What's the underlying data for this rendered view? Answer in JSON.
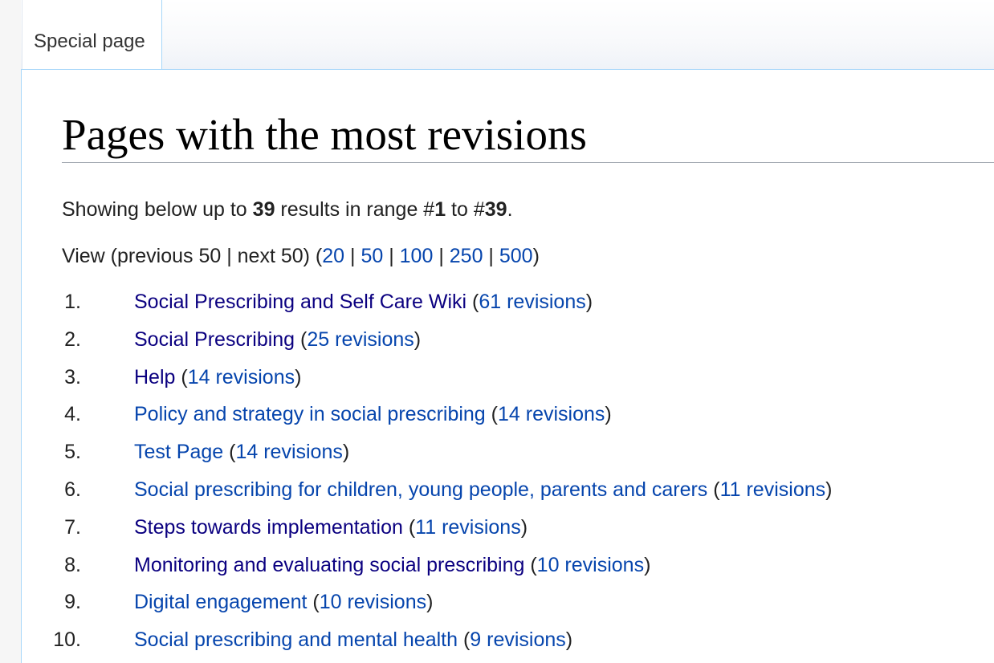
{
  "tab": {
    "label": "Special page"
  },
  "page": {
    "title": "Pages with the most revisions"
  },
  "summary": {
    "prefix": "Showing below up to ",
    "count": "39",
    "mid": " results in range #",
    "range_start": "1",
    "to": " to #",
    "range_end": "39",
    "end": "."
  },
  "view": {
    "prefix": "View (previous 50 | next 50) (",
    "sep": " | ",
    "suffix": ")",
    "options": [
      "20",
      "50",
      "100",
      "250",
      "500"
    ]
  },
  "results": [
    {
      "num": "1.",
      "title": "Social Prescribing and Self Care Wiki",
      "revisions": "61 revisions",
      "visited": true
    },
    {
      "num": "2.",
      "title": "Social Prescribing",
      "revisions": "25 revisions",
      "visited": true
    },
    {
      "num": "3.",
      "title": "Help",
      "revisions": "14 revisions",
      "visited": true
    },
    {
      "num": "4.",
      "title": "Policy and strategy in social prescribing",
      "revisions": "14 revisions",
      "visited": false
    },
    {
      "num": "5.",
      "title": "Test Page",
      "revisions": "14 revisions",
      "visited": false
    },
    {
      "num": "6.",
      "title": "Social prescribing for children, young people, parents and carers",
      "revisions": "11 revisions",
      "visited": false
    },
    {
      "num": "7.",
      "title": "Steps towards implementation",
      "revisions": "11 revisions",
      "visited": true
    },
    {
      "num": "8.",
      "title": "Monitoring and evaluating social prescribing",
      "revisions": "10 revisions",
      "visited": true
    },
    {
      "num": "9.",
      "title": "Digital engagement",
      "revisions": "10 revisions",
      "visited": false
    },
    {
      "num": "10.",
      "title": "Social prescribing and mental health",
      "revisions": "9 revisions",
      "visited": false
    }
  ],
  "colors": {
    "link": "#0645ad",
    "visited_link": "#0b0080",
    "text": "#222222",
    "border": "#a7d7f9"
  }
}
